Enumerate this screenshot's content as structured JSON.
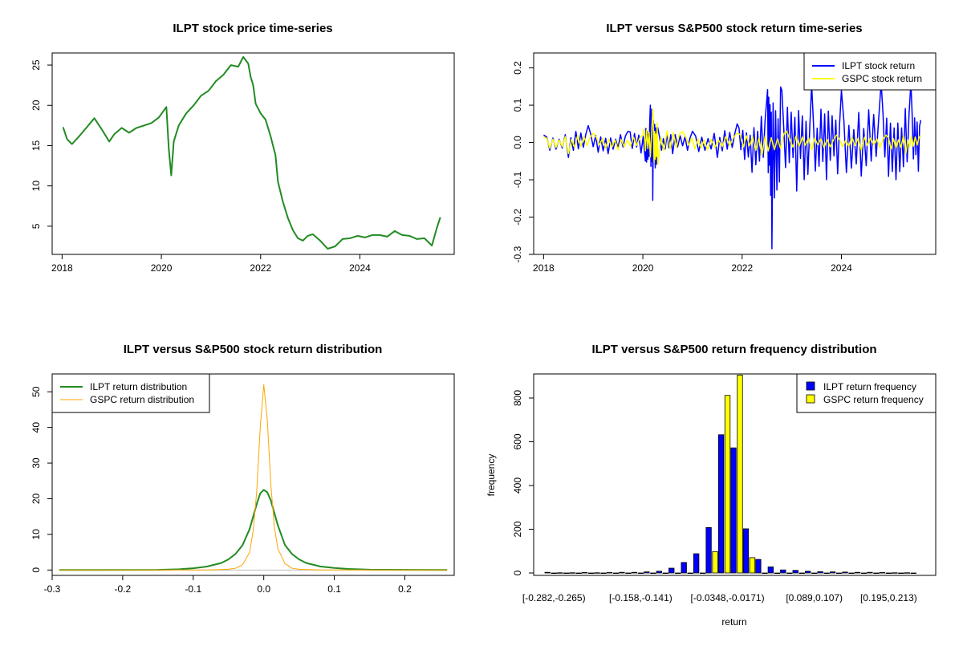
{
  "chart_data": [
    {
      "id": "p1",
      "type": "line",
      "title": "ILPT stock price time-series",
      "xlim": [
        2017.8,
        2025.9
      ],
      "ylim": [
        1.5,
        26.5
      ],
      "x_ticks": [
        2018,
        2020,
        2022,
        2024
      ],
      "y_ticks": [
        5,
        10,
        15,
        20,
        25
      ],
      "color": "#228B22",
      "series": [
        {
          "name": "ILPT price",
          "x": [
            2018.02,
            2018.1,
            2018.2,
            2018.35,
            2018.5,
            2018.65,
            2018.8,
            2018.95,
            2019.05,
            2019.2,
            2019.35,
            2019.5,
            2019.65,
            2019.8,
            2019.95,
            2020.1,
            2020.15,
            2020.2,
            2020.25,
            2020.35,
            2020.5,
            2020.65,
            2020.8,
            2020.95,
            2021.1,
            2021.25,
            2021.4,
            2021.55,
            2021.65,
            2021.75,
            2021.8,
            2021.85,
            2021.9,
            2022.0,
            2022.1,
            2022.2,
            2022.3,
            2022.35,
            2022.45,
            2022.55,
            2022.65,
            2022.75,
            2022.85,
            2022.95,
            2023.05,
            2023.2,
            2023.35,
            2023.5,
            2023.65,
            2023.8,
            2023.95,
            2024.1,
            2024.25,
            2024.4,
            2024.55,
            2024.7,
            2024.85,
            2025.0,
            2025.15,
            2025.3,
            2025.45,
            2025.55,
            2025.62
          ],
          "values": [
            17.3,
            15.8,
            15.2,
            16.2,
            17.3,
            18.4,
            17.0,
            15.5,
            16.4,
            17.2,
            16.6,
            17.2,
            17.5,
            17.8,
            18.5,
            19.8,
            14.5,
            11.3,
            15.5,
            17.5,
            19.0,
            20.0,
            21.2,
            21.8,
            23.0,
            23.8,
            25.0,
            24.8,
            26.0,
            25.2,
            23.5,
            22.5,
            20.2,
            19.0,
            18.2,
            16.2,
            13.8,
            10.5,
            8.0,
            6.0,
            4.5,
            3.5,
            3.2,
            3.8,
            4.0,
            3.2,
            2.2,
            2.5,
            3.4,
            3.5,
            3.8,
            3.6,
            3.9,
            3.9,
            3.7,
            4.4,
            3.9,
            3.8,
            3.4,
            3.5,
            2.6,
            4.8,
            6.1
          ]
        }
      ]
    },
    {
      "id": "p2",
      "type": "line",
      "title": "ILPT versus S&P500 stock return time-series",
      "xlim": [
        2017.8,
        2025.9
      ],
      "ylim": [
        -0.3,
        0.24
      ],
      "x_ticks": [
        2018,
        2020,
        2022,
        2024
      ],
      "y_ticks": [
        -0.3,
        -0.2,
        -0.1,
        0.0,
        0.1,
        0.2
      ],
      "y_tick_labels": [
        "-0.3",
        "-0.2",
        "-0.1",
        "0.0",
        "0.1",
        "0.2"
      ],
      "legend": [
        {
          "label": "ILPT stock return",
          "color": "#0000FF"
        },
        {
          "label": "GSPC stock return",
          "color": "#FFFF00"
        }
      ],
      "legend_position": "top-right",
      "series": [
        {
          "name": "ILPT stock return",
          "color": "#0000FF",
          "x": [
            2018.0,
            2018.5,
            2018.9,
            2019.3,
            2019.7,
            2020.05,
            2020.15,
            2020.2,
            2020.3,
            2020.6,
            2021.0,
            2021.5,
            2021.9,
            2022.2,
            2022.5,
            2022.6,
            2022.8,
            2023.1,
            2023.4,
            2023.7,
            2024.0,
            2024.4,
            2024.8,
            2025.1,
            2025.4,
            2025.6
          ],
          "values": [
            0.02,
            -0.04,
            0.045,
            -0.03,
            0.03,
            -0.05,
            0.1,
            -0.155,
            0.04,
            -0.03,
            0.03,
            -0.04,
            0.05,
            -0.08,
            0.12,
            -0.285,
            0.14,
            -0.13,
            0.155,
            -0.1,
            0.14,
            -0.09,
            0.16,
            -0.1,
            0.16,
            0.06
          ]
        },
        {
          "name": "GSPC stock return",
          "color": "#FFFF00",
          "x": [
            2018.0,
            2018.5,
            2019.0,
            2019.5,
            2020.0,
            2020.2,
            2020.3,
            2020.8,
            2021.3,
            2021.9,
            2022.4,
            2022.9,
            2023.4,
            2023.9,
            2024.4,
            2024.9,
            2025.3,
            2025.6
          ],
          "values": [
            0.015,
            -0.03,
            0.025,
            -0.02,
            0.02,
            0.09,
            -0.06,
            0.03,
            -0.02,
            0.025,
            -0.035,
            0.03,
            -0.02,
            0.02,
            -0.02,
            0.02,
            -0.03,
            0.02
          ]
        }
      ]
    },
    {
      "id": "p3",
      "type": "line",
      "title": "ILPT versus S&P500 stock return distribution",
      "xlim": [
        -0.3,
        0.27
      ],
      "ylim": [
        -1.5,
        55
      ],
      "x_ticks": [
        -0.3,
        -0.2,
        -0.1,
        0.0,
        0.1,
        0.2
      ],
      "x_tick_labels": [
        "-0.3",
        "-0.2",
        "-0.1",
        "0.0",
        "0.1",
        "0.2"
      ],
      "y_ticks": [
        0,
        10,
        20,
        30,
        40,
        50
      ],
      "legend": [
        {
          "label": "ILPT return distribution",
          "color": "#228B22"
        },
        {
          "label": "GSPC return distribution",
          "color": "#FFA500"
        }
      ],
      "legend_position": "top-left",
      "series": [
        {
          "name": "ILPT return distribution",
          "color": "#228B22",
          "x": [
            -0.29,
            -0.15,
            -0.12,
            -0.1,
            -0.08,
            -0.06,
            -0.05,
            -0.04,
            -0.03,
            -0.02,
            -0.015,
            -0.01,
            -0.005,
            0.0,
            0.005,
            0.01,
            0.015,
            0.02,
            0.03,
            0.04,
            0.05,
            0.06,
            0.08,
            0.1,
            0.12,
            0.15,
            0.26
          ],
          "values": [
            0,
            0.05,
            0.2,
            0.5,
            1.0,
            2.0,
            3.0,
            4.5,
            7.0,
            11.5,
            15.0,
            18.5,
            21.5,
            22.5,
            21.8,
            19.5,
            16.0,
            12.5,
            7.0,
            4.5,
            3.0,
            2.0,
            1.0,
            0.6,
            0.3,
            0.1,
            0
          ]
        },
        {
          "name": "GSPC return distribution",
          "color": "#FFA500",
          "x": [
            -0.29,
            -0.08,
            -0.05,
            -0.04,
            -0.03,
            -0.02,
            -0.015,
            -0.01,
            -0.005,
            0.0,
            0.005,
            0.01,
            0.015,
            0.02,
            0.03,
            0.04,
            0.05,
            0.08,
            0.26
          ],
          "values": [
            0,
            0,
            0.2,
            0.5,
            1.5,
            5.0,
            11.0,
            22.0,
            40.0,
            52.0,
            42.0,
            24.0,
            12.0,
            6.0,
            1.8,
            0.5,
            0.2,
            0,
            0
          ]
        }
      ]
    },
    {
      "id": "p4",
      "type": "bar",
      "title": "ILPT versus S&P500 return frequency distribution",
      "xlabel": "return",
      "ylabel": "frequency",
      "ylim": [
        0,
        910
      ],
      "y_ticks": [
        0,
        200,
        400,
        600,
        800
      ],
      "x_tick_labels": [
        {
          "label": "[-0.282,-0.265)",
          "bin": 0
        },
        {
          "label": "[-0.158,-0.141)",
          "bin": 7
        },
        {
          "label": "[-0.0348,-0.0171)",
          "bin": 14
        },
        {
          "label": "[0.089,0.107)",
          "bin": 21
        },
        {
          "label": "[0.195,0.213)",
          "bin": 27
        }
      ],
      "legend": [
        {
          "label": "ILPT return frequency",
          "color": "#0000FF"
        },
        {
          "label": "GSPC return frequency",
          "color": "#FFFF00"
        }
      ],
      "legend_position": "top-right",
      "series": [
        {
          "name": "ILPT return frequency",
          "color": "#0000FF",
          "values": [
            3,
            1,
            1,
            2,
            1,
            2,
            3,
            3,
            5,
            8,
            22,
            48,
            88,
            208,
            632,
            572,
            202,
            62,
            28,
            14,
            12,
            8,
            6,
            5,
            4,
            3,
            3,
            2,
            1,
            1
          ]
        },
        {
          "name": "GSPC return frequency",
          "color": "#FFFF00",
          "values": [
            0,
            0,
            0,
            0,
            0,
            0,
            0,
            0,
            0,
            0,
            0,
            0,
            0,
            98,
            812,
            905,
            70,
            0,
            0,
            0,
            0,
            0,
            0,
            0,
            0,
            0,
            0,
            0,
            0,
            0
          ]
        }
      ]
    }
  ]
}
